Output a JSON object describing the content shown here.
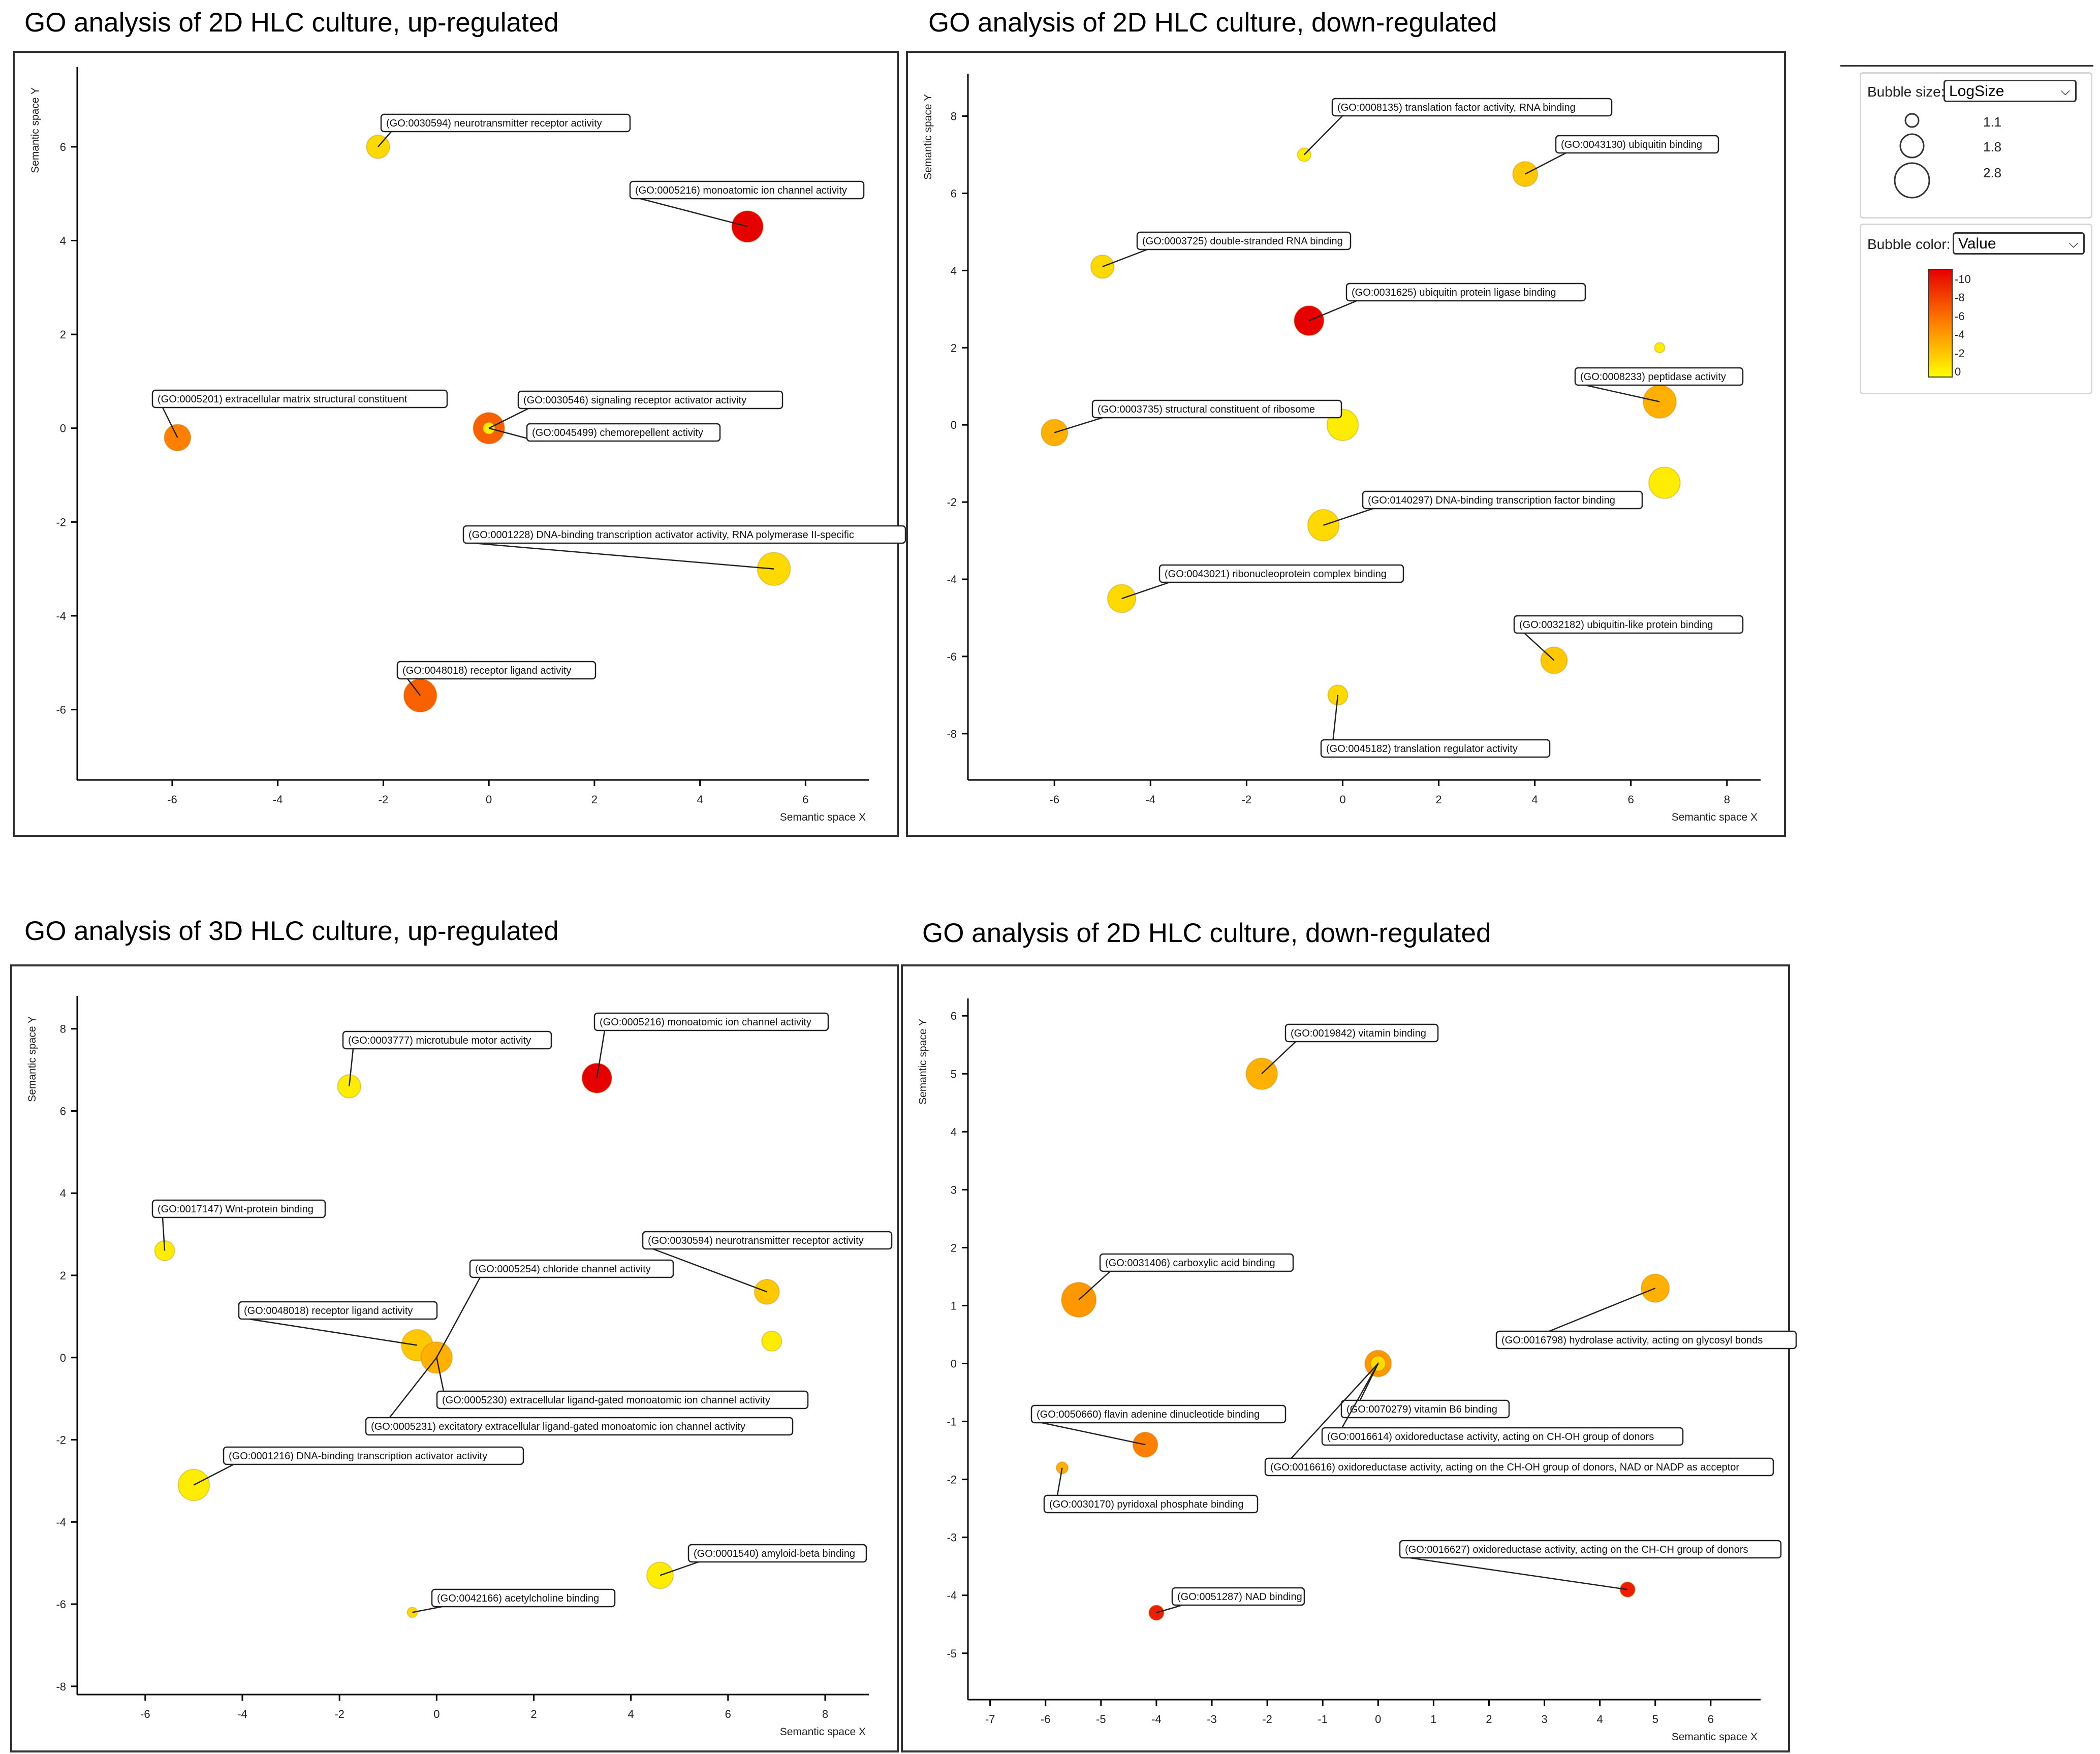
{
  "panels": [
    {
      "title": "GO analysis of 2D HLC culture, up-regulated",
      "xlabel": "Semantic space X",
      "ylabel": "Semantic space Y",
      "xticks": [
        -6,
        -4,
        -2,
        0,
        2,
        4,
        6
      ],
      "yticks": [
        -6,
        -4,
        -2,
        0,
        2,
        4,
        6
      ]
    },
    {
      "title": "GO analysis of 2D HLC culture, down-regulated",
      "xlabel": "Semantic space X",
      "ylabel": "Semantic space Y",
      "xticks": [
        -6,
        -4,
        -2,
        0,
        2,
        4,
        6,
        8
      ],
      "yticks": [
        -8,
        -6,
        -4,
        -2,
        0,
        2,
        4,
        6,
        8
      ]
    },
    {
      "title": "GO analysis of 3D HLC culture, up-regulated",
      "xlabel": "Semantic space X",
      "ylabel": "Semantic space Y",
      "xticks": [
        -6,
        -4,
        -2,
        0,
        2,
        4,
        6,
        8
      ],
      "yticks": [
        -8,
        -6,
        -4,
        -2,
        0,
        2,
        4,
        6,
        8
      ]
    },
    {
      "title": "GO analysis of 2D HLC culture, down-regulated",
      "xlabel": "Semantic space X",
      "ylabel": "Semantic space Y",
      "xticks": [
        -7,
        -6,
        -5,
        -4,
        -3,
        -2,
        -1,
        0,
        1,
        2,
        3,
        4,
        5,
        6
      ],
      "yticks": [
        -5,
        -4,
        -3,
        -2,
        -1,
        0,
        1,
        2,
        3,
        4,
        5,
        6
      ]
    }
  ],
  "legend": {
    "size_label": "Bubble size:",
    "size_select": "LogSize",
    "size_values": [
      "1.1",
      "1.8",
      "2.8"
    ],
    "color_label": "Bubble color:",
    "color_select": "Value",
    "color_ticks": [
      "-10",
      "-8",
      "-6",
      "-4",
      "-2",
      "0"
    ]
  },
  "chart_data": [
    {
      "type": "scatter",
      "title": "GO analysis of 2D HLC culture, up-regulated",
      "xlabel": "Semantic space X",
      "ylabel": "Semantic space Y",
      "xlim": [
        -7.8,
        7.2
      ],
      "ylim": [
        -7.5,
        7.7
      ],
      "points": [
        {
          "x": -2.1,
          "y": 6.0,
          "size": 1.8,
          "value": -2,
          "label": "(GO:0030594) neurotransmitter receptor activity"
        },
        {
          "x": 4.9,
          "y": 4.3,
          "size": 2.3,
          "value": -10,
          "label": "(GO:0005216) monoatomic ion channel activity"
        },
        {
          "x": -5.9,
          "y": -0.2,
          "size": 2.0,
          "value": -6,
          "label": "(GO:0005201) extracellular matrix structural constituent"
        },
        {
          "x": 0.0,
          "y": 0.0,
          "size": 2.3,
          "value": -7,
          "label": "(GO:0030546) signaling receptor activator activity"
        },
        {
          "x": 0.0,
          "y": 0.0,
          "size": 1.1,
          "value": -1,
          "label": "(GO:0045499) chemorepellent activity"
        },
        {
          "x": 5.4,
          "y": -3.0,
          "size": 2.4,
          "value": -2,
          "label": "(GO:0001228) DNA-binding transcription activator activity, RNA polymerase II-specific"
        },
        {
          "x": -1.3,
          "y": -5.7,
          "size": 2.4,
          "value": -7,
          "label": "(GO:0048018) receptor ligand activity"
        }
      ]
    },
    {
      "type": "scatter",
      "title": "GO analysis of 2D HLC culture, down-regulated",
      "xlabel": "Semantic space X",
      "ylabel": "Semantic space Y",
      "xlim": [
        -7.8,
        8.7
      ],
      "ylim": [
        -9.2,
        9.1
      ],
      "points": [
        {
          "x": -0.8,
          "y": 7.0,
          "size": 1.2,
          "value": -1,
          "label": "(GO:0008135) translation factor activity, RNA binding"
        },
        {
          "x": 3.8,
          "y": 6.5,
          "size": 1.9,
          "value": -3,
          "label": "(GO:0043130) ubiquitin binding"
        },
        {
          "x": -5.0,
          "y": 4.1,
          "size": 1.8,
          "value": -2,
          "label": "(GO:0003725) double-stranded RNA binding"
        },
        {
          "x": -0.7,
          "y": 2.7,
          "size": 2.2,
          "value": -10,
          "label": "(GO:0031625) ubiquitin protein ligase binding"
        },
        {
          "x": 6.6,
          "y": 2.0,
          "size": 1.0,
          "value": -1,
          "label": ""
        },
        {
          "x": 6.6,
          "y": 0.6,
          "size": 2.4,
          "value": -4,
          "label": "(GO:0008233) peptidase activity"
        },
        {
          "x": -6.0,
          "y": -0.2,
          "size": 2.0,
          "value": -4,
          "label": "(GO:0003735) structural constituent of ribosome"
        },
        {
          "x": 0.0,
          "y": 0.0,
          "size": 2.3,
          "value": -1,
          "label": ""
        },
        {
          "x": 6.7,
          "y": -1.5,
          "size": 2.3,
          "value": -1,
          "label": ""
        },
        {
          "x": -0.4,
          "y": -2.6,
          "size": 2.3,
          "value": -2,
          "label": "(GO:0140297) DNA-binding transcription factor binding"
        },
        {
          "x": -4.6,
          "y": -4.5,
          "size": 2.1,
          "value": -2,
          "label": "(GO:0043021) ribonucleoprotein complex binding"
        },
        {
          "x": 4.4,
          "y": -6.1,
          "size": 2.0,
          "value": -3,
          "label": "(GO:0032182) ubiquitin-like protein binding"
        },
        {
          "x": -0.1,
          "y": -7.0,
          "size": 1.6,
          "value": -2,
          "label": "(GO:0045182) translation regulator activity"
        }
      ]
    },
    {
      "type": "scatter",
      "title": "GO analysis of 3D HLC culture, up-regulated",
      "xlabel": "Semantic space X",
      "ylabel": "Semantic space Y",
      "xlim": [
        -7.4,
        8.9
      ],
      "ylim": [
        -8.2,
        8.8
      ],
      "points": [
        {
          "x": -1.8,
          "y": 6.6,
          "size": 1.8,
          "value": -1,
          "label": "(GO:0003777) microtubule motor activity"
        },
        {
          "x": 3.3,
          "y": 6.8,
          "size": 2.2,
          "value": -10,
          "label": "(GO:0005216) monoatomic ion channel activity"
        },
        {
          "x": -5.6,
          "y": 2.6,
          "size": 1.6,
          "value": -1,
          "label": "(GO:0017147) Wnt-protein binding"
        },
        {
          "x": 6.8,
          "y": 1.6,
          "size": 1.9,
          "value": -3,
          "label": "(GO:0030594) neurotransmitter receptor activity"
        },
        {
          "x": 6.9,
          "y": 0.4,
          "size": 1.6,
          "value": -1,
          "label": ""
        },
        {
          "x": -0.4,
          "y": 0.3,
          "size": 2.3,
          "value": -3,
          "label": "(GO:0048018) receptor ligand activity"
        },
        {
          "x": 0.0,
          "y": 0.0,
          "size": 2.3,
          "value": -4,
          "label": "(GO:0005254) chloride channel activity"
        },
        {
          "x": 0.0,
          "y": 0.0,
          "size": 0.1,
          "value": -4,
          "label": "(GO:0005230) extracellular ligand-gated monoatomic ion channel activity"
        },
        {
          "x": 0.0,
          "y": 0.0,
          "size": 0.1,
          "value": -4,
          "label": "(GO:0005231) excitatory extracellular ligand-gated monoatomic ion channel activity"
        },
        {
          "x": -5.0,
          "y": -3.1,
          "size": 2.3,
          "value": -1,
          "label": "(GO:0001216) DNA-binding transcription activator activity"
        },
        {
          "x": 4.6,
          "y": -5.3,
          "size": 2.0,
          "value": -1,
          "label": "(GO:0001540) amyloid-beta binding"
        },
        {
          "x": -0.5,
          "y": -6.2,
          "size": 1.0,
          "value": -2,
          "label": "(GO:0042166) acetylcholine binding"
        }
      ]
    },
    {
      "type": "scatter",
      "title": "GO analysis of 2D HLC culture, down-regulated",
      "xlabel": "Semantic space X",
      "ylabel": "Semantic space Y",
      "xlim": [
        -7.4,
        6.9
      ],
      "ylim": [
        -5.8,
        6.3
      ],
      "points": [
        {
          "x": -2.1,
          "y": 5.0,
          "size": 2.3,
          "value": -4,
          "label": "(GO:0019842) vitamin binding"
        },
        {
          "x": -5.4,
          "y": 1.1,
          "size": 2.5,
          "value": -5,
          "label": "(GO:0031406) carboxylic acid binding"
        },
        {
          "x": 5.0,
          "y": 1.3,
          "size": 2.1,
          "value": -4,
          "label": "(GO:0016798) hydrolase activity, acting on glycosyl bonds"
        },
        {
          "x": 0.0,
          "y": 0.0,
          "size": 2.0,
          "value": -5,
          "label": "(GO:0070279) vitamin B6 binding"
        },
        {
          "x": 0.0,
          "y": 0.0,
          "size": 1.3,
          "value": -2,
          "label": "(GO:0016614) oxidoreductase activity, acting on CH-OH group of donors"
        },
        {
          "x": 0.0,
          "y": 0.0,
          "size": 0.1,
          "value": -5,
          "label": "(GO:0016616) oxidoreductase activity, acting on the CH-OH group of donors, NAD or NADP as acceptor"
        },
        {
          "x": -4.2,
          "y": -1.4,
          "size": 1.9,
          "value": -6,
          "label": "(GO:0050660) flavin adenine dinucleotide binding"
        },
        {
          "x": -5.7,
          "y": -1.8,
          "size": 1.1,
          "value": -4,
          "label": "(GO:0030170) pyridoxal phosphate binding"
        },
        {
          "x": 4.5,
          "y": -3.9,
          "size": 1.3,
          "value": -9,
          "label": "(GO:0016627) oxidoreductase activity, acting on the CH-CH group of donors"
        },
        {
          "x": -4.0,
          "y": -4.3,
          "size": 1.3,
          "value": -9,
          "label": "(GO:0051287) NAD binding"
        }
      ]
    }
  ]
}
